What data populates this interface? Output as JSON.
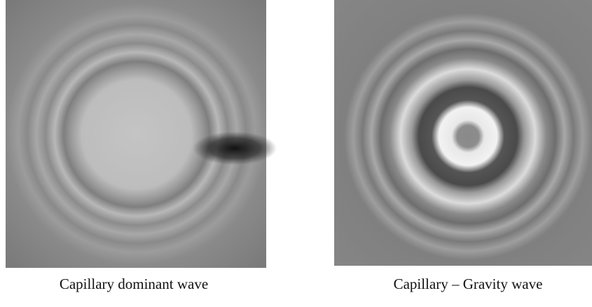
{
  "figure": {
    "panels": [
      {
        "caption": "Capillary dominant wave"
      },
      {
        "caption": "Capillary – Gravity wave"
      }
    ]
  }
}
